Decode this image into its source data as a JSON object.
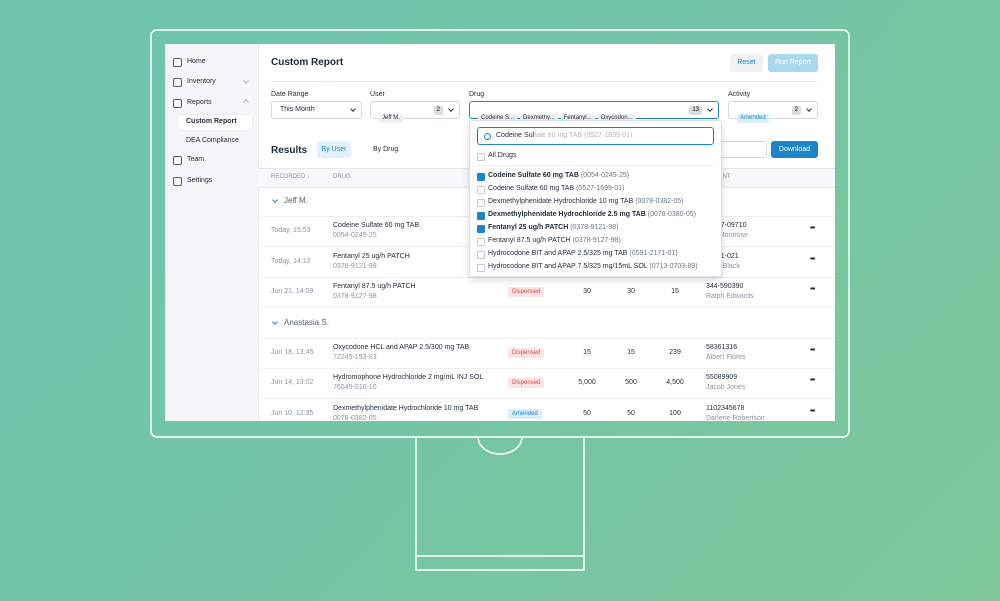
{
  "sidebar": {
    "items": [
      {
        "label": "Home",
        "icon": true,
        "level": 0
      },
      {
        "label": "Inventory",
        "icon": true,
        "level": 0,
        "caret": true
      },
      {
        "label": "Reports",
        "icon": true,
        "level": 0,
        "caret": true,
        "open": true
      },
      {
        "label": "Custom Report",
        "level": 1,
        "active": true
      },
      {
        "label": "DEA Compliance",
        "level": 1
      },
      {
        "label": "Team",
        "icon": true,
        "level": 0
      },
      {
        "label": "Settings",
        "icon": true,
        "level": 0
      }
    ]
  },
  "header": {
    "title": "Custom Report",
    "reset": "Reset",
    "run": "Run Report"
  },
  "filters": {
    "date": {
      "label": "Date Range",
      "value": "This Month"
    },
    "user": {
      "label": "User",
      "chips": [
        "Jeff M."
      ],
      "count": "2"
    },
    "drug": {
      "label": "Drug",
      "chips": [
        "Codeine S...",
        "Dexmethy...",
        "Fentanyl...",
        "Oxycodon..."
      ],
      "count": "13"
    },
    "activity": {
      "label": "Activity",
      "chips": [
        "Amended"
      ],
      "count": "2"
    }
  },
  "results": {
    "title": "Results",
    "tabs": [
      "By User",
      "By Drug"
    ],
    "download": "Download"
  },
  "table": {
    "columns": {
      "recorded": "RECORDED ↓",
      "drug": "DRUG",
      "patient": "PATIENT"
    },
    "groups": [
      {
        "name": "Jeff M.",
        "rows": [
          {
            "recorded": "Today, 15:53",
            "drug": "Codeine Sulfate 60 mg TAB",
            "ndc": "0054-0245-25",
            "patient_id": "537-09710",
            "patient": "b Montrose"
          },
          {
            "recorded": "Today, 14:12",
            "drug": "Fentanyl 25 ug/h PATCH",
            "ndc": "0378-9121-98",
            "patient_id": "331-021",
            "patient": "tte Black"
          },
          {
            "recorded": "Jun 21, 14:09",
            "drug": "Fentanyl 87.5 ug/h PATCH",
            "ndc": "0378-9127-98",
            "status": "Dispensed",
            "n1": "30",
            "n2": "30",
            "n3": "15",
            "patient_id": "344-590390",
            "patient": "Ralph Edwards"
          }
        ]
      },
      {
        "name": "Anastasia S.",
        "rows": [
          {
            "recorded": "Jun 18, 13:45",
            "drug": "Oxycodone HCL and APAP 2.5/300 mg TAB",
            "ndc": "72245-193-03",
            "status": "Dispensed",
            "n1": "15",
            "n2": "15",
            "n3": "239",
            "patient_id": "58361316",
            "patient": "Albert Flores"
          },
          {
            "recorded": "Jun 14, 13:02",
            "drug": "Hydromophone Hydrochloride 2 mg/mL INJ SOL",
            "ndc": "76045-010-10",
            "status": "Dispensed",
            "n1": "5,000",
            "n2": "500",
            "n3": "4,500",
            "patient_id": "55089909",
            "patient": "Jacob Jones"
          },
          {
            "recorded": "Jun 10, 12:35",
            "drug": "Dexmethylphenidate Hydrochloride 10 mg TAB",
            "ndc": "0078-0382-05",
            "status": "Amended",
            "n1": "50",
            "n2": "50",
            "n3": "100",
            "patient_id": "1102345678",
            "patient": "Darlene Robertson"
          }
        ]
      }
    ]
  },
  "dropdown": {
    "typed": "Codeine Sul",
    "placeholder": "fate 60 mg TAB (0527-1699-01)",
    "all": "All Drugs",
    "options": [
      {
        "name": "Codeine Sulfate 60 mg TAB",
        "code": "(0054-0245-25)",
        "checked": true
      },
      {
        "name": "Codeine Sulfate 60 mg TAB",
        "code": "(0527-1699-01)",
        "checked": false
      },
      {
        "name": "Dexmethylphenidate Hydrochloride 10 mg TAB",
        "code": "(0078-0382-05)",
        "checked": false
      },
      {
        "name": "Dexmethylphenidate Hydrochloride 2.5 mg TAB",
        "code": "(0078-0380-05)",
        "checked": true
      },
      {
        "name": "Fentanyl 25 ug/h PATCH",
        "code": "(0378-9121-98)",
        "checked": true
      },
      {
        "name": "Fentanyl 87.5 ug/h PATCH",
        "code": "(0378-9127-98)",
        "checked": false
      },
      {
        "name": "Hydrocodone BIT and APAP 2.5/325 mg TAB",
        "code": "(0591-2171-01)",
        "checked": false
      },
      {
        "name": "Hydrocodone BIT and APAP 7.5/325 mg/15mL SOL",
        "code": "(0713-0703-89)",
        "checked": false
      }
    ]
  }
}
